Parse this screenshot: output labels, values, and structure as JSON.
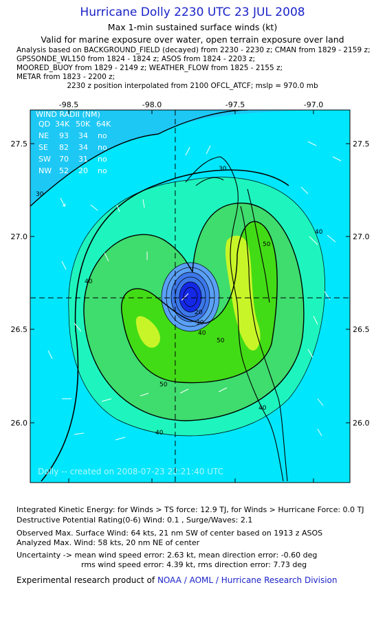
{
  "header": {
    "title": "Hurricane Dolly 2230 UTC 23 JUL 2008",
    "subtitle1": "Max 1-min sustained surface winds (kt)",
    "subtitle2": "Valid for marine exposure over water, open terrain exposure over land",
    "analysis_lines": [
      "Analysis based on  BACKGROUND_FIELD (decayed) from 2230 - 2230 z;  CMAN from 1829 - 2159 z;",
      "GPSSONDE_WL150 from 1824 - 1824 z;  ASOS from 1824 - 2203 z;",
      "MOORED_BUOY from 1829 - 2149 z;  WEATHER_FLOW from 1825 - 2155 z;",
      "METAR from 1823 - 2200 z;"
    ],
    "position_note": "2230 z position interpolated from 2100 OFCL_ATCF; mslp = 970.0 mb"
  },
  "map": {
    "lon_ticks": [
      "-98.5",
      "-98.0",
      "-97.5",
      "-97.0"
    ],
    "lat_ticks": [
      "27.5",
      "27.0",
      "26.5",
      "26.0"
    ],
    "center": {
      "lon": -97.86,
      "lat": 26.67
    },
    "wind_radii": {
      "title": "WIND RADII (NM)",
      "header": [
        "QD",
        "34K",
        "50K",
        "64K"
      ],
      "rows": [
        [
          "NE",
          "93",
          "34",
          "no"
        ],
        [
          "SE",
          "82",
          "34",
          "no"
        ],
        [
          "SW",
          "70",
          "31",
          "no"
        ],
        [
          "NW",
          "52",
          "20",
          "no"
        ]
      ]
    },
    "contour_labels": [
      "30",
      "30",
      "40",
      "40",
      "40",
      "40",
      "50",
      "50",
      "50",
      "20",
      "30",
      "40"
    ],
    "watermark": "Dolly -- created on 2008-07-23 22:21:40 UTC",
    "colors": {
      "lt20": "#1ec8f5",
      "c20_30": "#00e6fc",
      "c30_40": "#1ef5be",
      "c40_50": "#3fdc6e",
      "c50_60": "#42dc16",
      "c60": "#c8f528",
      "eye_dark": "#1428e6",
      "eye_light": "#5aa0f5"
    }
  },
  "footer": {
    "ike": "Integrated Kinetic Energy:  for Winds > TS force: 12.9 TJ,  for Winds > Hurricane Force: 0.0 TJ",
    "dpr": "Destructive Potential Rating(0-6)   Wind: 0.1 , Surge/Waves: 2.1",
    "obs_max": "Observed Max. Surface Wind: 64 kts, 21 nm SW of center based on 1913 z ASOS",
    "ana_max": "Analyzed Max. Wind: 58 kts, 20 nm NE of center",
    "unc1": "Uncertainty -> mean wind speed error: 2.63 kt,   mean direction error:  -0.60 deg",
    "unc2": "rms wind speed error: 4.39 kt,   rms direction error: 7.73 deg",
    "credit_prefix": "Experimental research product of",
    "credit_link": "NOAA / AOML / Hurricane Research Division"
  }
}
